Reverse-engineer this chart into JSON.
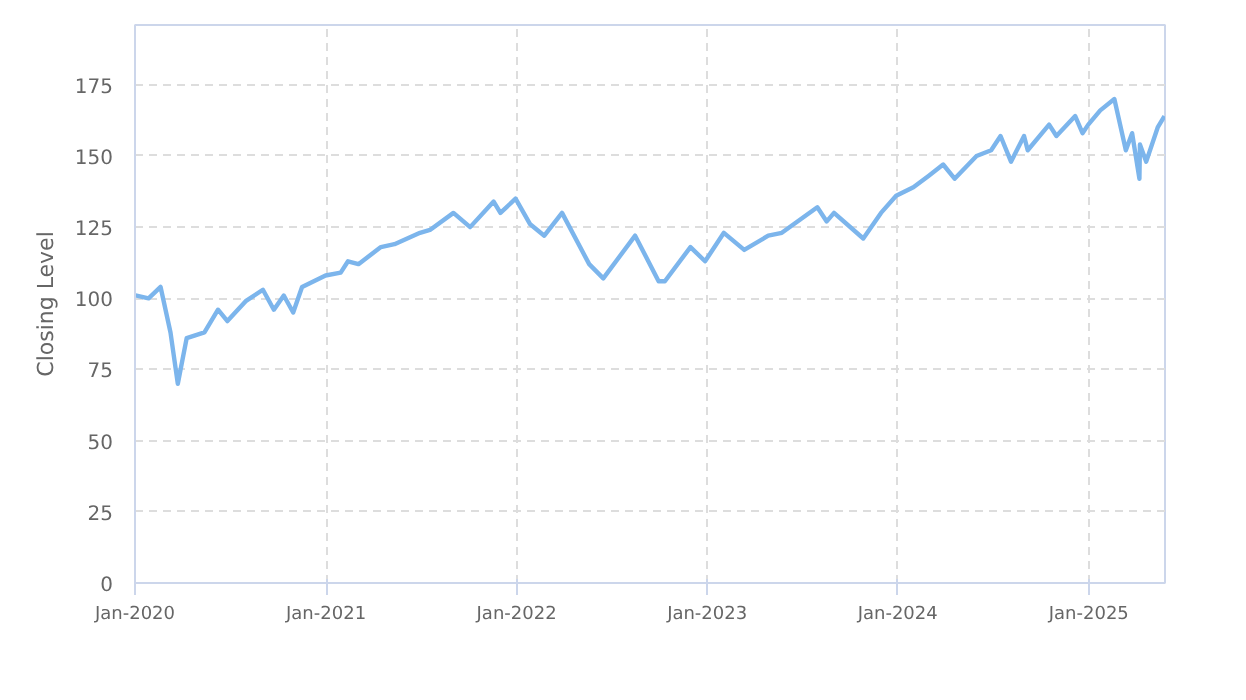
{
  "chart_data": {
    "type": "line",
    "ylabel": "Closing Level",
    "x": [
      "2020-01-02",
      "2020-01-27",
      "2020-02-19",
      "2020-03-09",
      "2020-03-23",
      "2020-04-09",
      "2020-05-13",
      "2020-06-08",
      "2020-06-26",
      "2020-07-31",
      "2020-09-02",
      "2020-09-23",
      "2020-10-12",
      "2020-10-30",
      "2020-11-16",
      "2020-12-31",
      "2021-01-29",
      "2021-02-12",
      "2021-03-04",
      "2021-04-16",
      "2021-05-12",
      "2021-06-30",
      "2021-07-19",
      "2021-09-02",
      "2021-10-04",
      "2021-11-18",
      "2021-12-01",
      "2021-12-30",
      "2022-01-27",
      "2022-02-23",
      "2022-03-29",
      "2022-05-20",
      "2022-06-16",
      "2022-08-16",
      "2022-09-30",
      "2022-10-12",
      "2022-11-30",
      "2022-12-28",
      "2023-02-02",
      "2023-03-13",
      "2023-04-28",
      "2023-05-24",
      "2023-07-31",
      "2023-08-18",
      "2023-09-01",
      "2023-10-27",
      "2023-11-30",
      "2023-12-29",
      "2024-01-31",
      "2024-02-29",
      "2024-03-28",
      "2024-04-19",
      "2024-05-31",
      "2024-06-28",
      "2024-07-16",
      "2024-08-05",
      "2024-08-30",
      "2024-09-06",
      "2024-10-17",
      "2024-10-31",
      "2024-12-06",
      "2024-12-20",
      "2024-12-31",
      "2025-01-23",
      "2025-02-19",
      "2025-03-13",
      "2025-03-25",
      "2025-04-08",
      "2025-04-09",
      "2025-04-21",
      "2025-05-13",
      "2025-05-26"
    ],
    "series": [
      {
        "color": "#7cb5ec",
        "values": [
          101,
          100,
          104,
          88,
          70,
          86,
          88,
          96,
          92,
          99,
          103,
          96,
          101,
          95,
          104,
          108,
          109,
          113,
          112,
          118,
          119,
          123,
          124,
          130,
          125,
          134,
          130,
          135,
          126,
          122,
          130,
          112,
          107,
          122,
          106,
          106,
          118,
          113,
          123,
          117,
          122,
          123,
          132,
          127,
          130,
          121,
          130,
          136,
          139,
          143,
          147,
          142,
          150,
          152,
          157,
          148,
          157,
          152,
          161,
          157,
          164,
          158,
          161,
          166,
          170,
          152,
          158,
          142,
          154,
          148,
          160,
          164
        ]
      }
    ],
    "xlim": [
      "2020-01-01",
      "2025-05-27"
    ],
    "ylim": [
      0,
      196
    ],
    "xticks": [
      {
        "value": "2020-01-01",
        "label": "Jan-2020"
      },
      {
        "value": "2021-01-01",
        "label": "Jan-2021"
      },
      {
        "value": "2022-01-01",
        "label": "Jan-2022"
      },
      {
        "value": "2023-01-01",
        "label": "Jan-2023"
      },
      {
        "value": "2024-01-01",
        "label": "Jan-2024"
      },
      {
        "value": "2025-01-01",
        "label": "Jan-2025"
      }
    ],
    "yticks": [
      0,
      25,
      50,
      75,
      100,
      125,
      150,
      175
    ],
    "grid": true,
    "line_style": "solid",
    "marker": "none"
  }
}
